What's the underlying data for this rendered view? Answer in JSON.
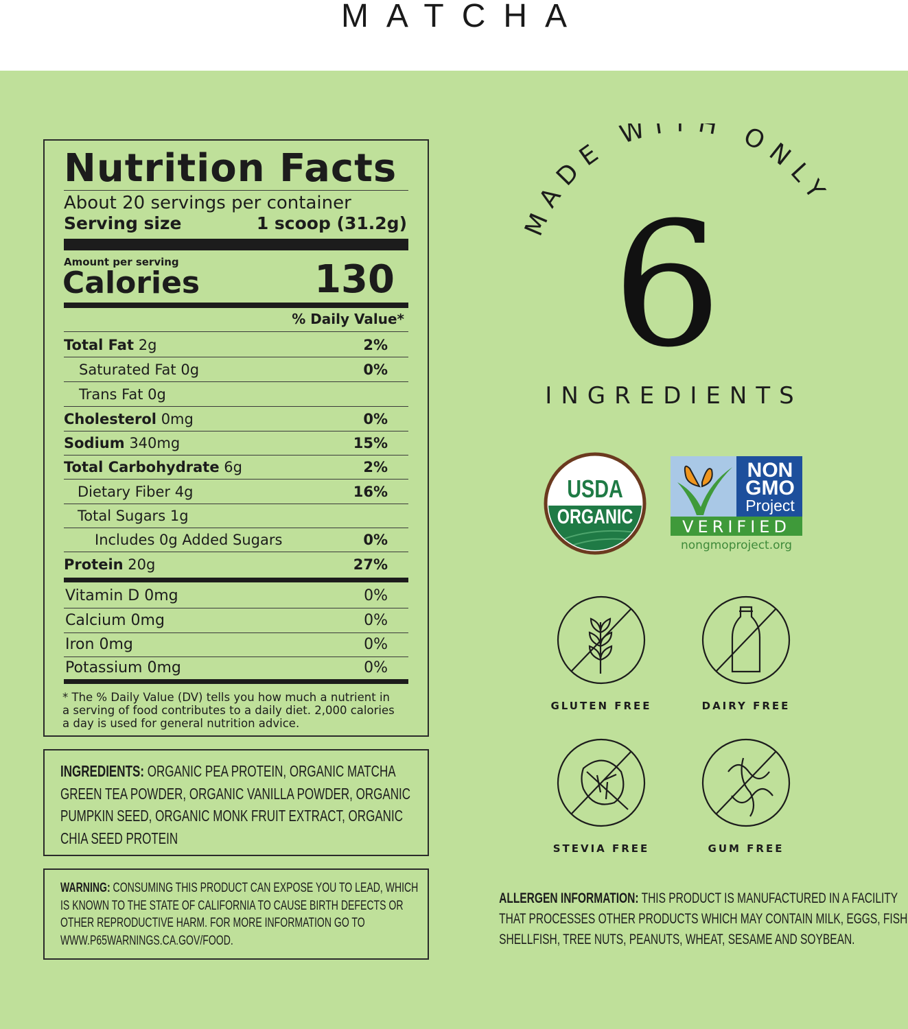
{
  "header": {
    "brand": "MATCHA"
  },
  "nutrition": {
    "title": "Nutrition Facts",
    "servings": "About 20 servings per container",
    "serving_size_label": "Serving size",
    "serving_size_value": "1 scoop (31.2g)",
    "amount_per_serving": "Amount per serving",
    "calories_label": "Calories",
    "calories_value": "130",
    "dv_header": "% Daily Value*",
    "rows": [
      {
        "name": "Total Fat",
        "amount": "2g",
        "dv": "2%"
      },
      {
        "name": "Saturated Fat",
        "amount": "0g",
        "dv": "0%"
      },
      {
        "name": "Trans Fat",
        "amount": "0g",
        "dv": ""
      },
      {
        "name": "Cholesterol",
        "amount": "0mg",
        "dv": "0%"
      },
      {
        "name": "Sodium",
        "amount": "340mg",
        "dv": "15%"
      },
      {
        "name": "Total Carbohydrate",
        "amount": "6g",
        "dv": "2%"
      },
      {
        "name": "Dietary Fiber",
        "amount": "4g",
        "dv": "16%"
      },
      {
        "name": "Total Sugars",
        "amount": "1g",
        "dv": ""
      },
      {
        "name": "Includes 0g Added Sugars",
        "amount": "",
        "dv": "0%"
      },
      {
        "name": "Protein",
        "amount": "20g",
        "dv": "27%"
      }
    ],
    "vitamins": [
      {
        "name": "Vitamin D 0mg",
        "dv": "0%"
      },
      {
        "name": "Calcium 0mg",
        "dv": "0%"
      },
      {
        "name": "Iron 0mg",
        "dv": "0%"
      },
      {
        "name": "Potassium 0mg",
        "dv": "0%"
      }
    ],
    "footnote": [
      "* The % Daily Value (DV) tells you how much a nutrient in",
      "a serving of food contributes to a daily diet. 2,000 calories",
      "a day is used for general nutrition advice."
    ]
  },
  "ingredients": {
    "label": "INGREDIENTS:",
    "lines": [
      " ORGANIC PEA PROTEIN, ORGANIC MATCHA",
      "GREEN TEA POWDER, ORGANIC VANILLA POWDER, ORGANIC",
      "PUMPKIN SEED, ORGANIC MONK FRUIT EXTRACT, ORGANIC",
      "CHIA SEED PROTEIN"
    ]
  },
  "warning": {
    "label": "WARNING:",
    "lines": [
      " CONSUMING THIS PRODUCT CAN EXPOSE YOU TO LEAD, WHICH",
      "IS KNOWN TO THE STATE OF CALIFORNIA TO CAUSE BIRTH DEFECTS OR",
      "OTHER REPRODUCTIVE HARM. FOR MORE INFORMATION GO TO",
      "WWW.P65WARNINGS.CA.GOV/FOOD."
    ]
  },
  "badge": {
    "arc_text": "MADE WITH ONLY",
    "number": "6",
    "sub": "INGREDIENTS"
  },
  "certs": {
    "usda_top": "USDA",
    "usda_bottom": "ORGANIC",
    "nongmo_lines": [
      "NON",
      "GMO",
      "Project"
    ],
    "nongmo_verified": "VERIFIED",
    "nongmo_url": "nongmoproject.org"
  },
  "free_icons": [
    {
      "label": "GLUTEN FREE",
      "icon": "wheat-icon"
    },
    {
      "label": "DAIRY FREE",
      "icon": "milk-bottle-icon"
    },
    {
      "label": "STEVIA FREE",
      "icon": "leaf-icon"
    },
    {
      "label": "GUM FREE",
      "icon": "gum-icon"
    }
  ],
  "allergen": {
    "label": "ALLERGEN INFORMATION:",
    "lines": [
      " THIS PRODUCT IS MANUFACTURED IN A FACILITY",
      "THAT PROCESSES OTHER PRODUCTS WHICH MAY CONTAIN MILK, EGGS, FISH,",
      "SHELLFISH, TREE NUTS, PEANUTS, WHEAT, SESAME AND SOYBEAN."
    ]
  },
  "colors": {
    "background": "#bfe09a",
    "text": "#1c1c1c",
    "usda_green": "#1f7a45",
    "usda_brown": "#6b3a1f",
    "nongmo_blue": "#1d4f9c",
    "nongmo_green": "#3f9a3a",
    "butterfly": "#f0961e"
  }
}
